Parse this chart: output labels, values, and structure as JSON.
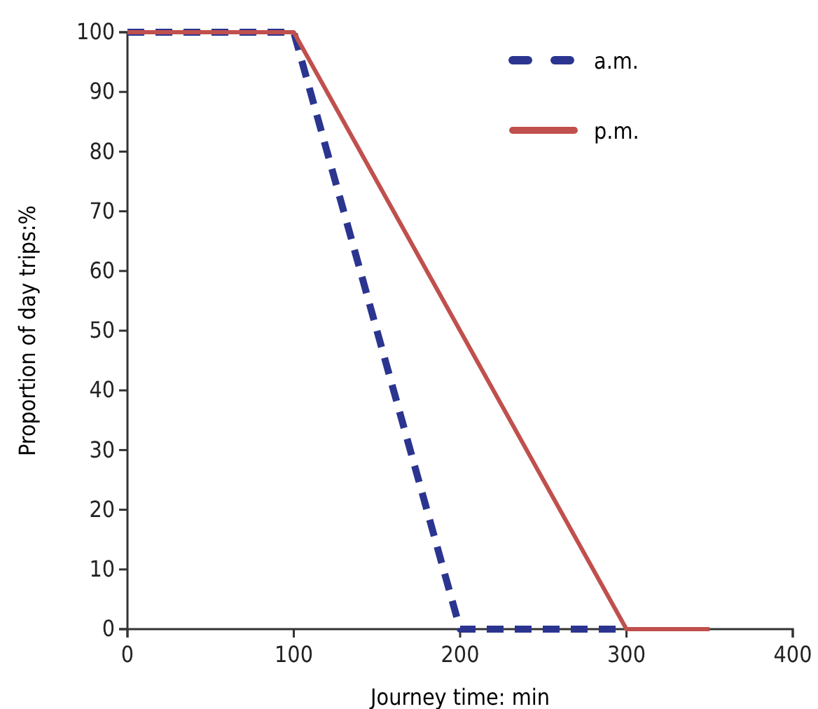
{
  "chart_data": {
    "type": "line",
    "xlabel": "Journey time: min",
    "ylabel": "Proportion of day trips:%",
    "xlim": [
      0,
      400
    ],
    "xticks": [
      0,
      100,
      200,
      300,
      400
    ],
    "ylim": [
      0,
      100
    ],
    "yticks": [
      0,
      10,
      20,
      30,
      40,
      50,
      60,
      70,
      80,
      90,
      100
    ],
    "grid": false,
    "legend": "top right",
    "marker": "none",
    "series": [
      {
        "name": "a.m.",
        "color": "#2b3590",
        "line_style": "dashed",
        "x": [
          0,
          100,
          200,
          300
        ],
        "values": [
          100,
          100,
          0,
          0
        ]
      },
      {
        "name": "p.m.",
        "color": "#c0504d",
        "line_style": "solid",
        "x": [
          0,
          100,
          300,
          350
        ],
        "values": [
          100,
          100,
          0,
          0
        ]
      }
    ]
  }
}
